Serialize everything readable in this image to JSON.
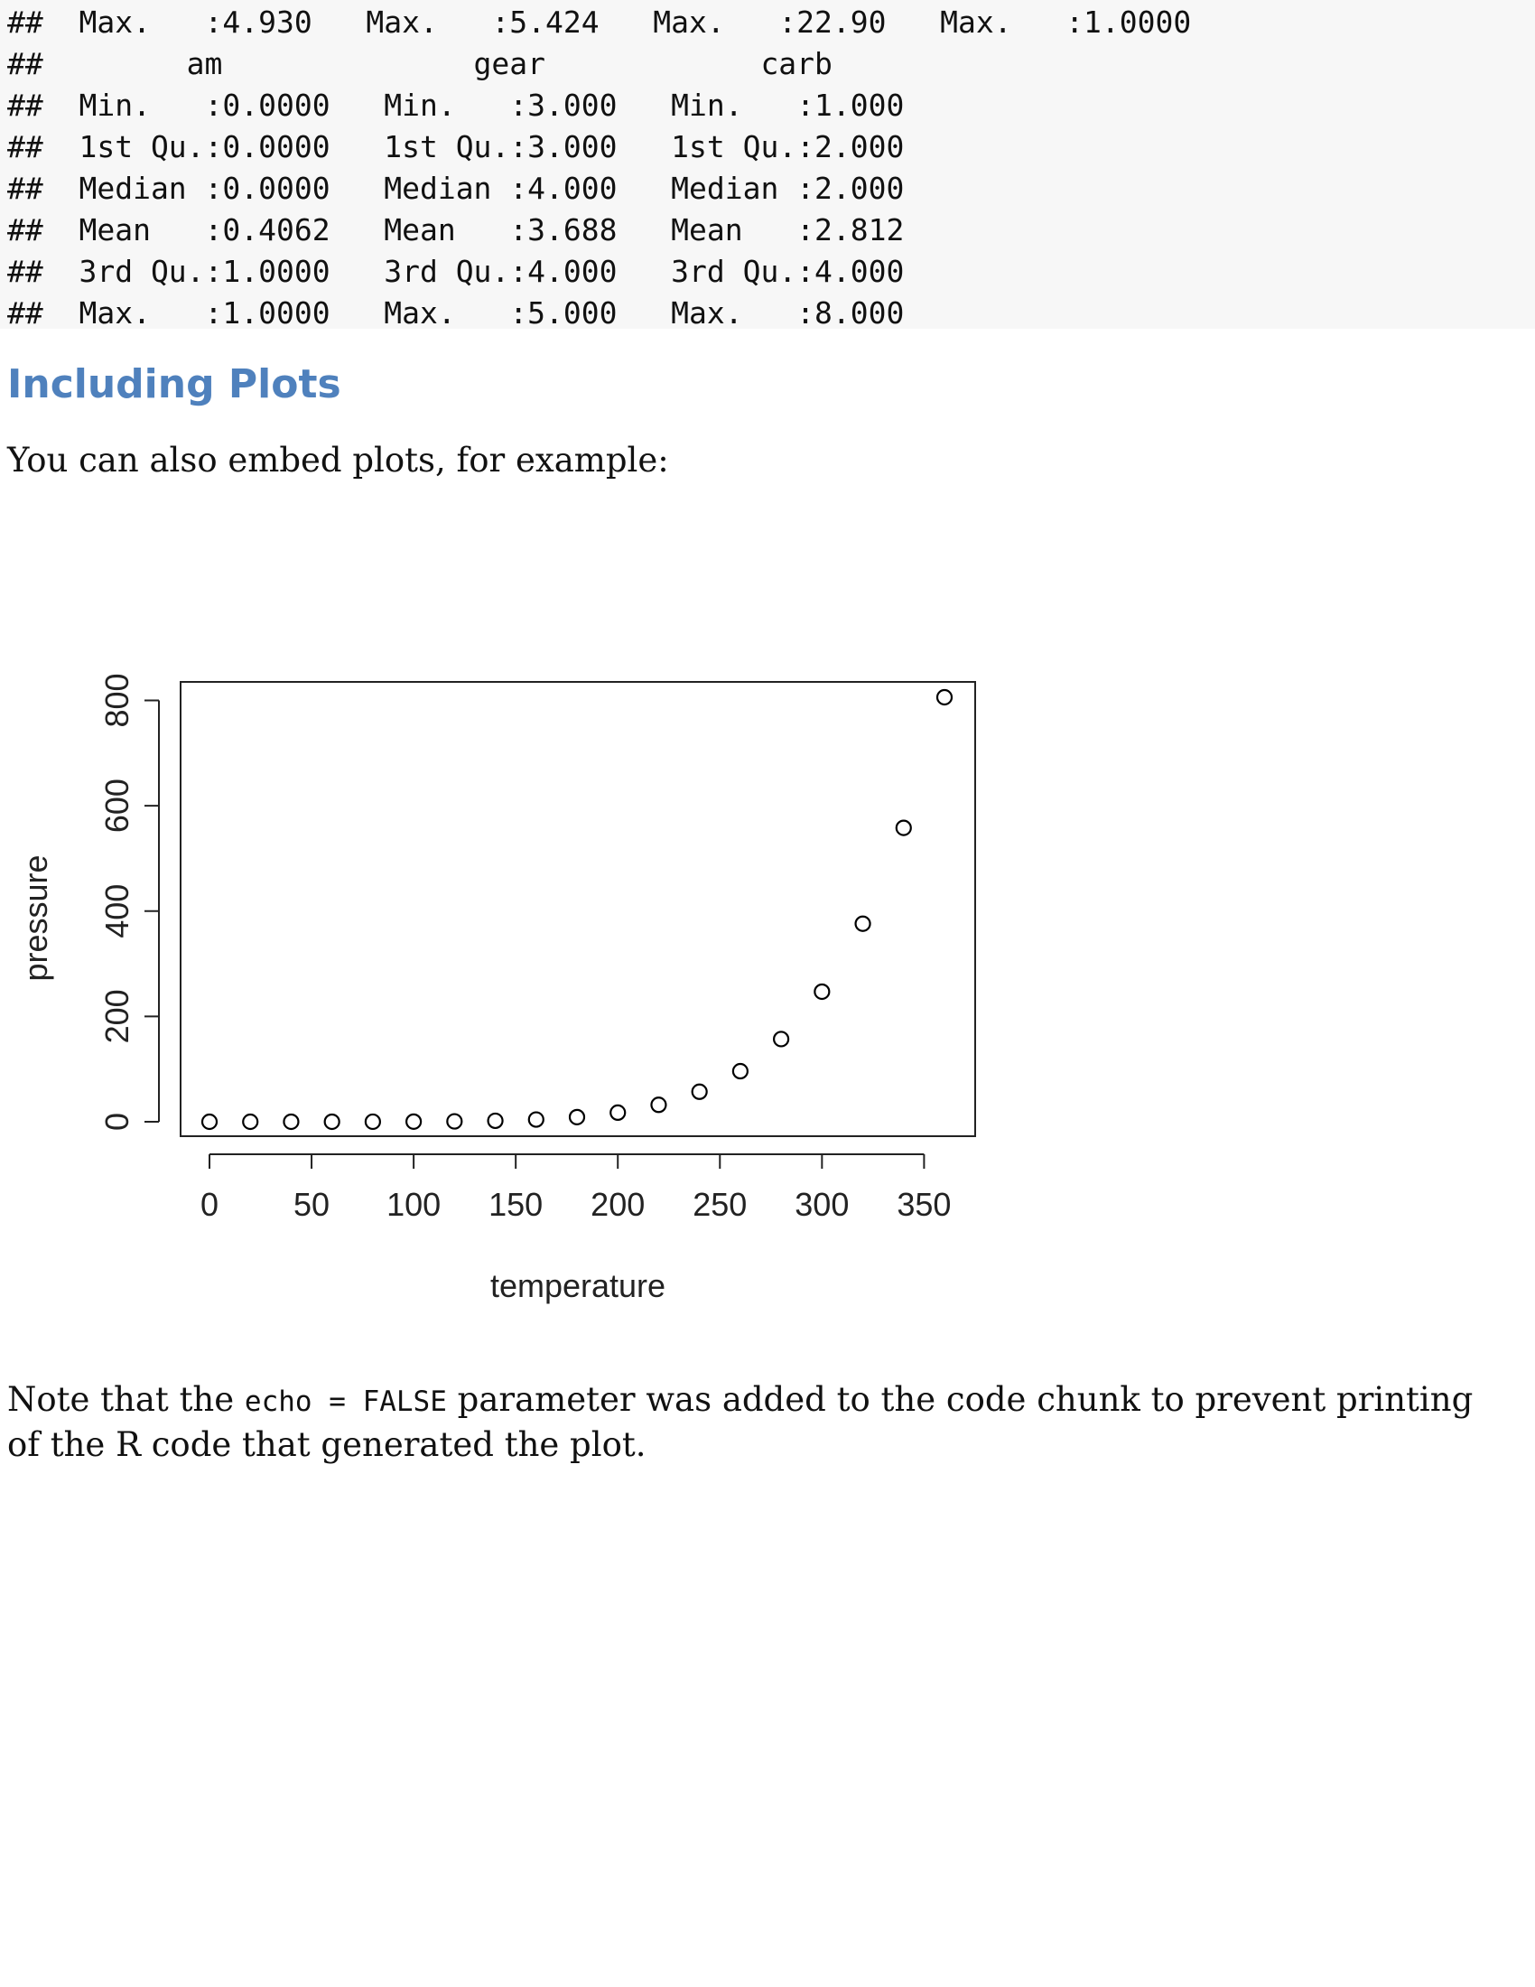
{
  "code_output": {
    "lines": [
      "##  Max.   :4.930   Max.   :5.424   Max.   :22.90   Max.   :1.0000",
      "##        am              gear            carb",
      "##  Min.   :0.0000   Min.   :3.000   Min.   :1.000",
      "##  1st Qu.:0.0000   1st Qu.:3.000   1st Qu.:2.000",
      "##  Median :0.0000   Median :4.000   Median :2.000",
      "##  Mean   :0.4062   Mean   :3.688   Mean   :2.812",
      "##  3rd Qu.:1.0000   3rd Qu.:4.000   3rd Qu.:4.000",
      "##  Max.   :1.0000   Max.   :5.000   Max.   :8.000"
    ]
  },
  "section": {
    "heading": "Including Plots",
    "intro": "You can also embed plots, for example:"
  },
  "note": {
    "before": "Note that the ",
    "code": "echo = FALSE",
    "after_line1": " parameter was added to the code chunk to prevent printing",
    "line2": "of the R code that generated the plot."
  },
  "chart_data": {
    "type": "scatter",
    "title": "",
    "xlabel": "temperature",
    "ylabel": "pressure",
    "xlim": [
      0,
      360
    ],
    "ylim": [
      0,
      806
    ],
    "grid": false,
    "x_ticks": [
      0,
      50,
      100,
      150,
      200,
      250,
      300,
      350
    ],
    "y_ticks": [
      0,
      200,
      400,
      600,
      800
    ],
    "x": [
      0,
      20,
      40,
      60,
      80,
      100,
      120,
      140,
      160,
      180,
      200,
      220,
      240,
      260,
      280,
      300,
      320,
      340,
      360
    ],
    "y": [
      0.0002,
      0.0012,
      0.006,
      0.03,
      0.09,
      0.27,
      0.75,
      1.85,
      4.2,
      8.8,
      17.3,
      32.1,
      57,
      96,
      157,
      247,
      376,
      558,
      806
    ],
    "marker": "open-circle",
    "marker_color": "#000000"
  }
}
